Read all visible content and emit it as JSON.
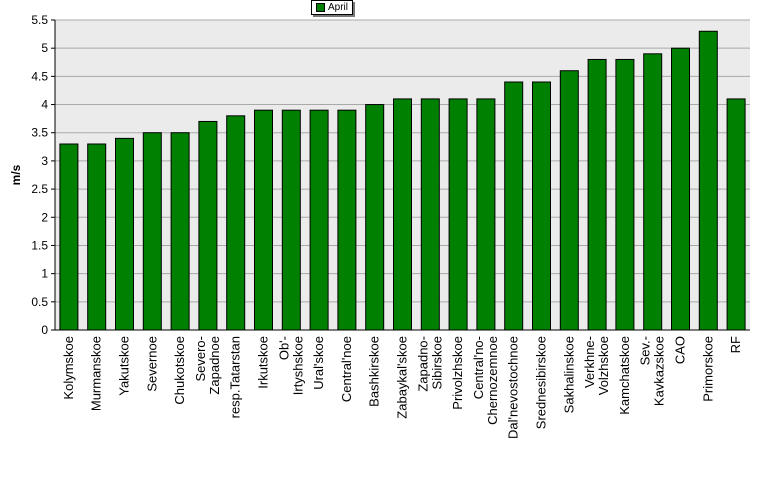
{
  "chart_data": {
    "type": "bar",
    "title": "",
    "xlabel": "",
    "ylabel": "m/s",
    "ylim": [
      0,
      5.5
    ],
    "yticks": [
      "0",
      "0.5",
      "1",
      "1.5",
      "2",
      "2.5",
      "3",
      "3.5",
      "4",
      "4.5",
      "5",
      "5.5"
    ],
    "grid": true,
    "legend_position": "top",
    "categories": [
      [
        "Kolymskoe"
      ],
      [
        "Murmanskoe"
      ],
      [
        "Yakutskoe"
      ],
      [
        "Severnoe"
      ],
      [
        "Chukotskoe"
      ],
      [
        "Severo-",
        "Zapadnoe"
      ],
      [
        "resp.Tatarstan"
      ],
      [
        "Irkutskoe"
      ],
      [
        "Ob'-",
        "Irtyshskoe"
      ],
      [
        "Ural'skoe"
      ],
      [
        "Central'noe"
      ],
      [
        "Bashkirskoe"
      ],
      [
        "Zabaykal'skoe"
      ],
      [
        "Zapadno-",
        "Sibirskoe"
      ],
      [
        "Privolzhskoe"
      ],
      [
        "Central'no-",
        "Chernozemnoe"
      ],
      [
        "Dal'nevostochnoe"
      ],
      [
        "Srednesibirskoe"
      ],
      [
        "Sakhalinskoe"
      ],
      [
        "Verkhne-",
        "Volzhskoe"
      ],
      [
        "Kamchatskoe"
      ],
      [
        "Sev.-",
        "Kavkazskoe"
      ],
      [
        "CAO"
      ],
      [
        "Primorskoe"
      ],
      [
        "RF"
      ]
    ],
    "series": [
      {
        "name": "April",
        "color": "#008000",
        "values": [
          3.3,
          3.3,
          3.4,
          3.5,
          3.5,
          3.7,
          3.8,
          3.9,
          3.9,
          3.9,
          3.9,
          4.0,
          4.1,
          4.1,
          4.1,
          4.1,
          4.4,
          4.4,
          4.6,
          4.8,
          4.8,
          4.9,
          5.0,
          5.3,
          4.1
        ]
      }
    ]
  }
}
